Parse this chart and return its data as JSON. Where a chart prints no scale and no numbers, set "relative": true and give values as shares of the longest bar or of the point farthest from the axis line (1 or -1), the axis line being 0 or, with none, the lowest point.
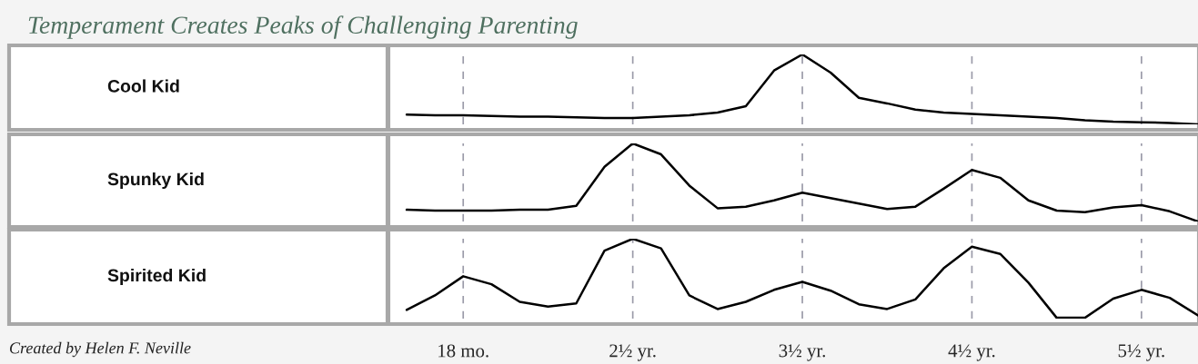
{
  "chart_data": [
    {
      "type": "line",
      "title": "Temperament Creates Peaks of Challenging Parenting",
      "relative": true,
      "grid": "x",
      "tick_labels": false,
      "legend": false,
      "marker": "none",
      "line_style": "solid",
      "categories": [
        null,
        null,
        null,
        null,
        null,
        null,
        null,
        null,
        null,
        null,
        null,
        null,
        null,
        null,
        null,
        null,
        null,
        null,
        null,
        null,
        null,
        null,
        null,
        null,
        null,
        null,
        null,
        null,
        null
      ],
      "series": [
        {
          "name": "Cool Kid",
          "color": "#000000",
          "values": [
            0.14,
            0.13,
            0.13,
            0.12,
            0.11,
            0.11,
            0.1,
            0.09,
            0.09,
            0.11,
            0.13,
            0.17,
            0.26,
            0.77,
            1,
            0.74,
            0.38,
            0.3,
            0.21,
            0.17,
            0.15,
            0.13,
            0.11,
            0.09,
            0.06,
            0.04,
            0.03,
            0.02,
            0
          ]
        }
      ]
    },
    {
      "type": "line",
      "relative": true,
      "grid": "x",
      "tick_labels": false,
      "legend": false,
      "marker": "none",
      "line_style": "solid",
      "categories": [
        null,
        null,
        null,
        null,
        null,
        null,
        null,
        null,
        null,
        null,
        null,
        null,
        null,
        null,
        null,
        null,
        null,
        null,
        null,
        null,
        null,
        null,
        null,
        null,
        null,
        null,
        null,
        null,
        null
      ],
      "series": [
        {
          "name": "Spunky Kid",
          "color": "#000000",
          "values": [
            0.15,
            0.14,
            0.14,
            0.14,
            0.15,
            0.15,
            0.2,
            0.7,
            1,
            0.86,
            0.46,
            0.17,
            0.19,
            0.27,
            0.37,
            0.3,
            0.23,
            0.16,
            0.19,
            0.42,
            0.66,
            0.56,
            0.27,
            0.14,
            0.12,
            0.18,
            0.21,
            0.13,
            0
          ]
        }
      ]
    },
    {
      "type": "line",
      "relative": true,
      "grid": "x",
      "tick_labels": "x",
      "legend": false,
      "marker": "none",
      "line_style": "solid",
      "categories": [
        null,
        null,
        "18 mo.",
        null,
        null,
        null,
        null,
        null,
        "2½ yr.",
        null,
        null,
        null,
        null,
        null,
        "3½ yr.",
        null,
        null,
        null,
        null,
        null,
        "4½ yr.",
        null,
        null,
        null,
        null,
        null,
        "5½ yr.",
        null,
        null
      ],
      "annotations": [
        "Created by Helen F. Neville"
      ],
      "series": [
        {
          "name": "Spirited Kid",
          "color": "#000000",
          "values": [
            0.11,
            0.29,
            0.53,
            0.43,
            0.21,
            0.15,
            0.19,
            0.85,
            1,
            0.88,
            0.29,
            0.12,
            0.21,
            0.36,
            0.46,
            0.35,
            0.18,
            0.12,
            0.24,
            0.63,
            0.9,
            0.81,
            0.45,
            0.01,
            0.01,
            0.25,
            0.36,
            0.26,
            0.04
          ]
        }
      ]
    }
  ]
}
